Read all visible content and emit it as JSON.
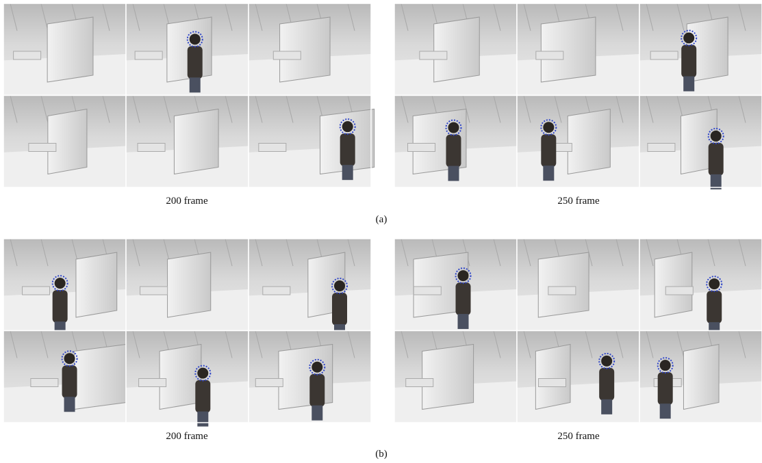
{
  "figure": {
    "rows": [
      {
        "panels": [
          {
            "caption": "200 frame"
          },
          {
            "caption": "250 frame"
          }
        ],
        "label": "(a)"
      },
      {
        "panels": [
          {
            "caption": "200 frame"
          },
          {
            "caption": "250 frame"
          }
        ],
        "label": "(b)"
      }
    ]
  }
}
